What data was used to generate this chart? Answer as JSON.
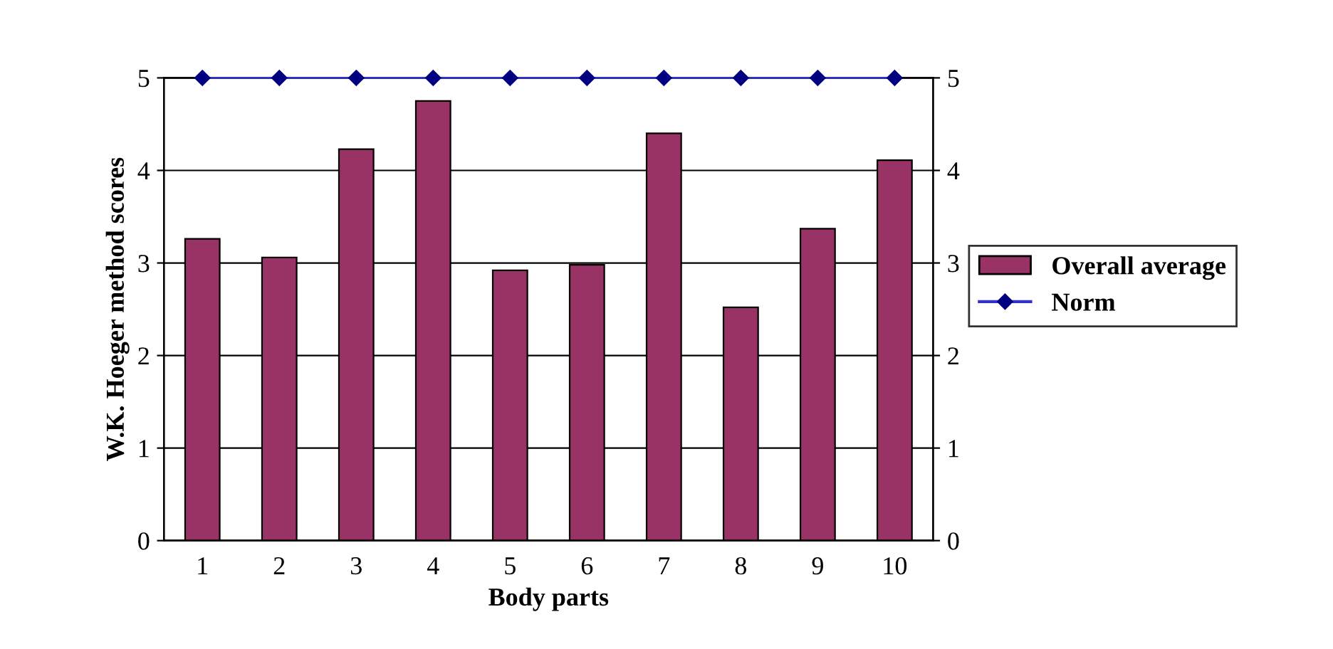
{
  "chart_data": {
    "type": "bar",
    "xlabel": "Body parts",
    "ylabel": "W.K. Hoeger method scores",
    "categories": [
      "1",
      "2",
      "3",
      "4",
      "5",
      "6",
      "7",
      "8",
      "9",
      "10"
    ],
    "series": [
      {
        "name": "Overall average",
        "color": "#993366",
        "values": [
          3.26,
          3.06,
          4.23,
          4.75,
          2.92,
          2.98,
          4.4,
          2.52,
          3.37,
          4.11
        ]
      },
      {
        "name": "Norm",
        "type": "line",
        "color": "#000080",
        "marker": "diamond",
        "values": [
          5,
          5,
          5,
          5,
          5,
          5,
          5,
          5,
          5,
          5
        ]
      }
    ],
    "ylim": [
      0,
      5
    ],
    "yticks": [
      0,
      1,
      2,
      3,
      4,
      5
    ],
    "y2lim": [
      0,
      5
    ],
    "y2ticks": [
      0,
      1,
      2,
      3,
      4,
      5
    ],
    "grid": "y",
    "legend": "right"
  }
}
